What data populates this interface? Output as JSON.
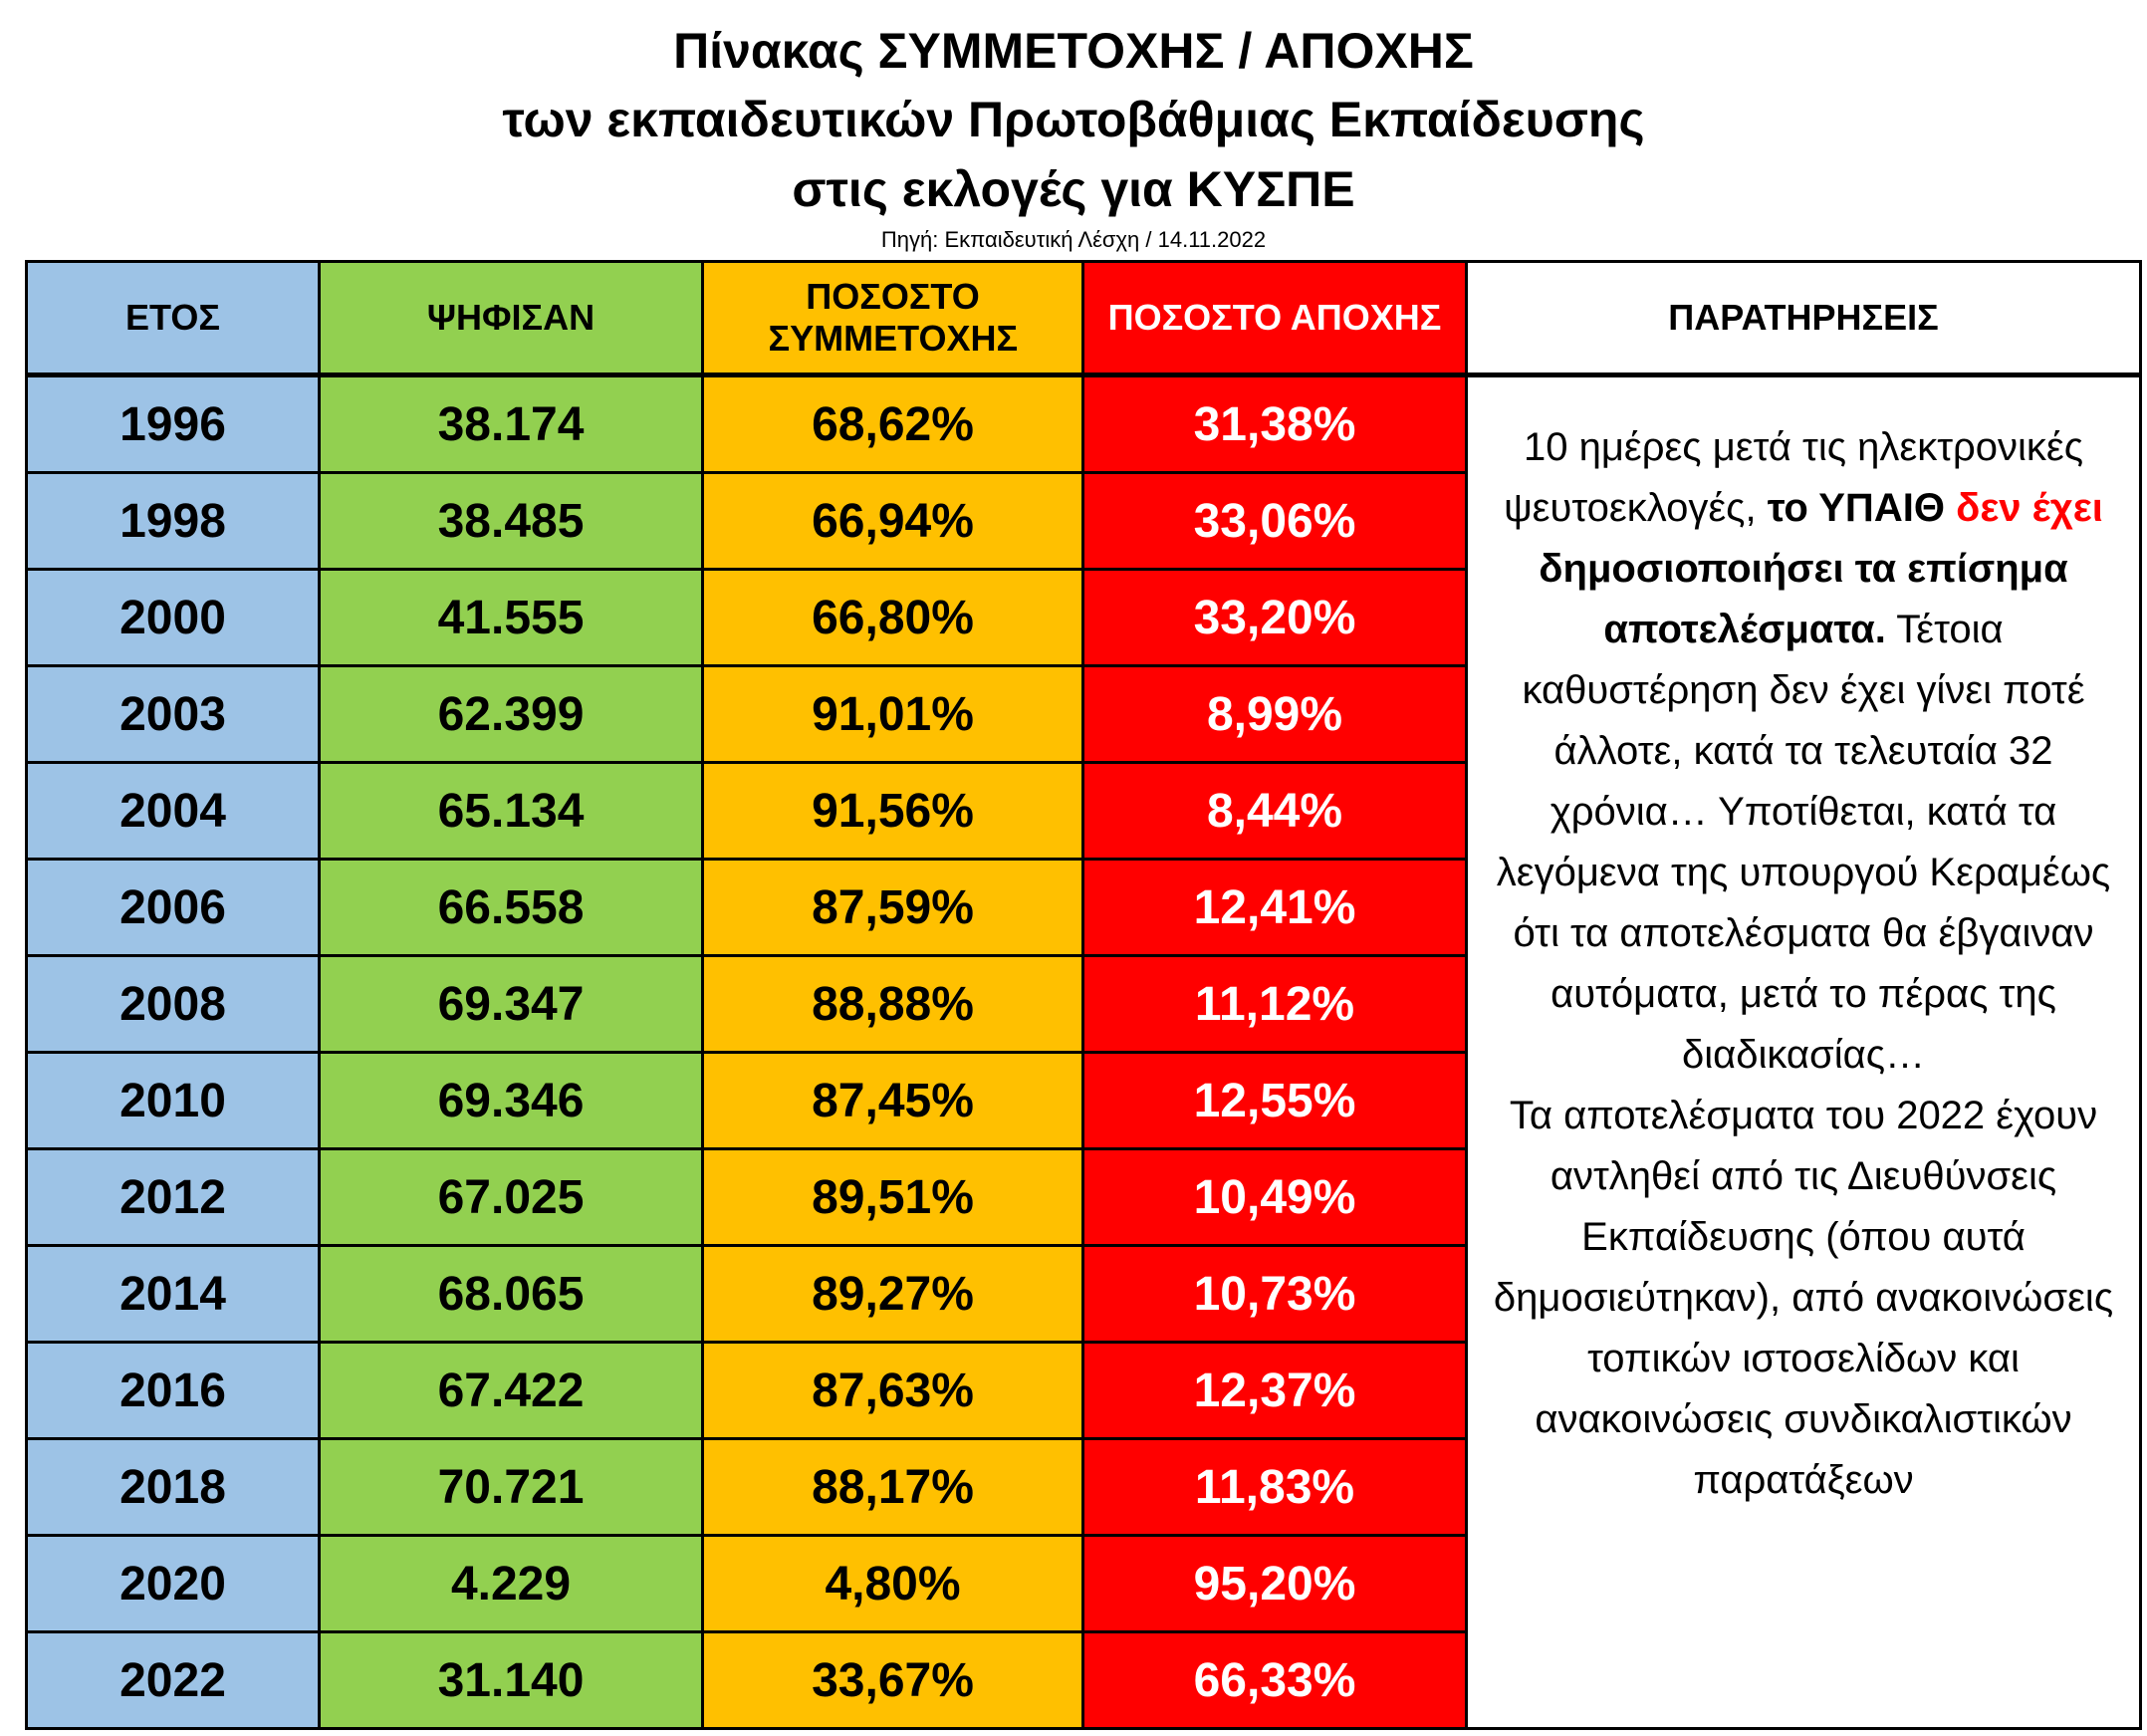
{
  "title": {
    "line1": "Πίνακας ΣΥΜΜΕΤΟΧΗΣ / ΑΠΟΧΗΣ",
    "line2": "των εκπαιδευτικών Πρωτοβάθμιας Εκπαίδευσης",
    "line3": "στις εκλογές για ΚΥΣΠΕ"
  },
  "source": "Πηγή: Εκπαιδευτική Λέσχη / 14.11.2022",
  "colors": {
    "year": "#9DC3E6",
    "voted": "#92D050",
    "participation": "#FFC000",
    "abstention": "#FF0000"
  },
  "headers": {
    "year": "ΕΤΟΣ",
    "voted": "ΨΗΦΙΣΑΝ",
    "participation": "ΠΟΣΟΣΤΟ ΣΥΜΜΕΤΟΧΗΣ",
    "abstention": "ΠΟΣΟΣΤΟ ΑΠΟΧΗΣ",
    "notes": "ΠΑΡΑΤΗΡΗΣΕΙΣ"
  },
  "rows": [
    {
      "year": "1996",
      "voted": "38.174",
      "participation": "68,62%",
      "abstention": "31,38%"
    },
    {
      "year": "1998",
      "voted": "38.485",
      "participation": "66,94%",
      "abstention": "33,06%"
    },
    {
      "year": "2000",
      "voted": "41.555",
      "participation": "66,80%",
      "abstention": "33,20%"
    },
    {
      "year": "2003",
      "voted": "62.399",
      "participation": "91,01%",
      "abstention": "8,99%"
    },
    {
      "year": "2004",
      "voted": "65.134",
      "participation": "91,56%",
      "abstention": "8,44%"
    },
    {
      "year": "2006",
      "voted": "66.558",
      "participation": "87,59%",
      "abstention": "12,41%"
    },
    {
      "year": "2008",
      "voted": "69.347",
      "participation": "88,88%",
      "abstention": "11,12%"
    },
    {
      "year": "2010",
      "voted": "69.346",
      "participation": "87,45%",
      "abstention": "12,55%"
    },
    {
      "year": "2012",
      "voted": "67.025",
      "participation": "89,51%",
      "abstention": "10,49%"
    },
    {
      "year": "2014",
      "voted": "68.065",
      "participation": "89,27%",
      "abstention": "10,73%"
    },
    {
      "year": "2016",
      "voted": "67.422",
      "participation": "87,63%",
      "abstention": "12,37%"
    },
    {
      "year": "2018",
      "voted": "70.721",
      "participation": "88,17%",
      "abstention": "11,83%"
    },
    {
      "year": "2020",
      "voted": "4.229",
      "participation": "4,80%",
      "abstention": "95,20%"
    },
    {
      "year": "2022",
      "voted": "31.140",
      "participation": "33,67%",
      "abstention": "66,33%"
    }
  ],
  "notes": {
    "p1": "10 ημέρες μετά τις ηλεκτρονικές ψευτοεκλογές,",
    "p2_bold": "το ΥΠΑΙΘ",
    "p2_red": "δεν έχει",
    "p2_bold2": "δημοσιοποιήσει τα επίσημα αποτελέσματα.",
    "p3": "Τέτοια καθυστέρηση δεν έχει γίνει ποτέ άλλοτε, κατά τα τελευταία 32 χρόνια… Υποτίθεται, κατά τα λεγόμενα της υπουργού Κεραμέως ότι τα αποτελέσματα θα έβγαιναν αυτόματα, μετά το πέρας της διαδικασίας…",
    "p4": "Τα αποτελέσματα του 2022 έχουν αντληθεί από τις Διευθύνσεις Εκπαίδευσης (όπου αυτά δημοσιεύτηκαν), από ανακοινώσεις τοπικών ιστοσελίδων και ανακοινώσεις συνδικαλιστικών παρατάξεων"
  }
}
